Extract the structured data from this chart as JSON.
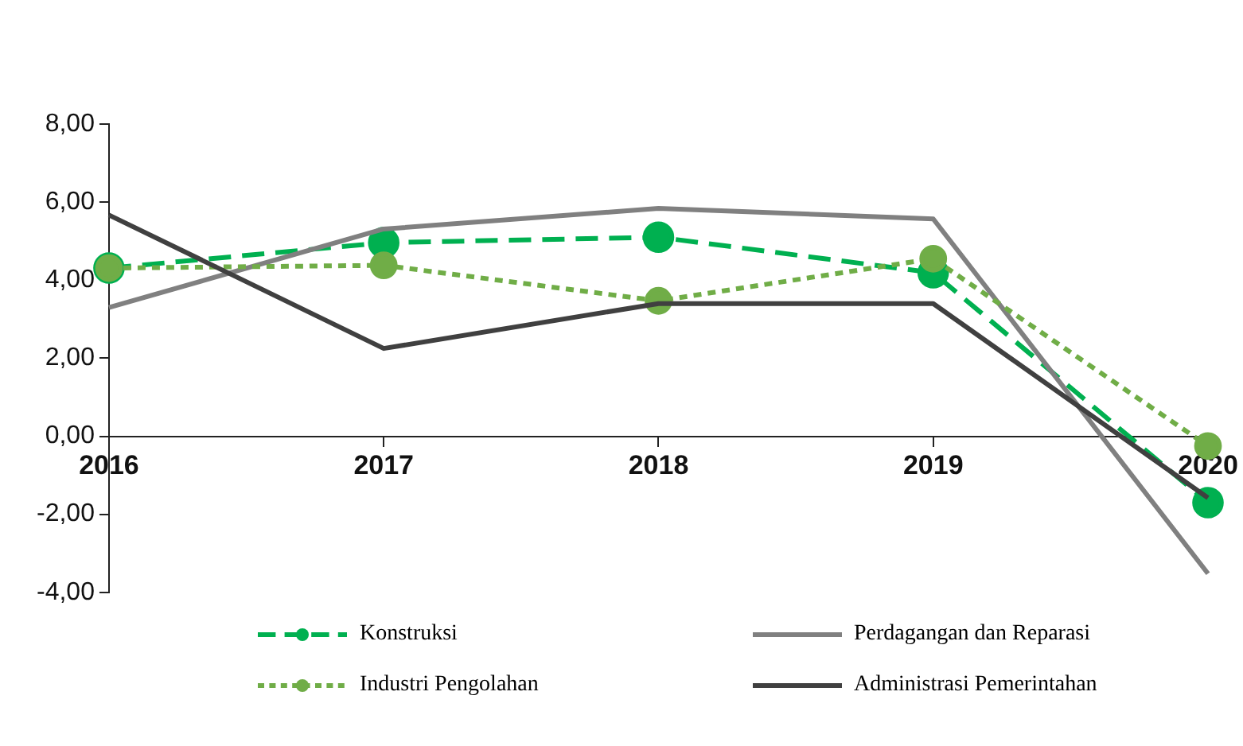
{
  "chart_data": {
    "type": "line",
    "categories": [
      "2016",
      "2017",
      "2018",
      "2019",
      "2020"
    ],
    "series": [
      {
        "name": "Konstruksi",
        "color": "#00b050",
        "values": [
          4.31,
          4.96,
          5.1,
          4.19,
          -1.7
        ],
        "marker": "circle",
        "line_style": "dashed"
      },
      {
        "name": "Perdagangan dan Reparasi",
        "color": "#808080",
        "values": [
          3.3,
          5.31,
          5.84,
          5.57,
          -3.52
        ],
        "marker": "none",
        "line_style": "solid"
      },
      {
        "name": "Industri Pengolahan",
        "color": "#70ad47",
        "values": [
          4.31,
          4.38,
          3.47,
          4.55,
          -0.25
        ],
        "marker": "circle",
        "line_style": "dotted"
      },
      {
        "name": "Administrasi Pemerintahan",
        "color": "#404040",
        "values": [
          5.67,
          2.25,
          3.4,
          3.4,
          -1.58
        ],
        "marker": "none",
        "line_style": "solid"
      }
    ],
    "ylim": [
      -4,
      8
    ],
    "yticks": [
      {
        "value": -4,
        "label": "-4,00"
      },
      {
        "value": -2,
        "label": "-2,00"
      },
      {
        "value": 0,
        "label": "0,00"
      },
      {
        "value": 2,
        "label": "2,00"
      },
      {
        "value": 4,
        "label": "4,00"
      },
      {
        "value": 6,
        "label": "6,00"
      },
      {
        "value": 8,
        "label": "8,00"
      }
    ],
    "grid": false,
    "legend": "bottom"
  }
}
